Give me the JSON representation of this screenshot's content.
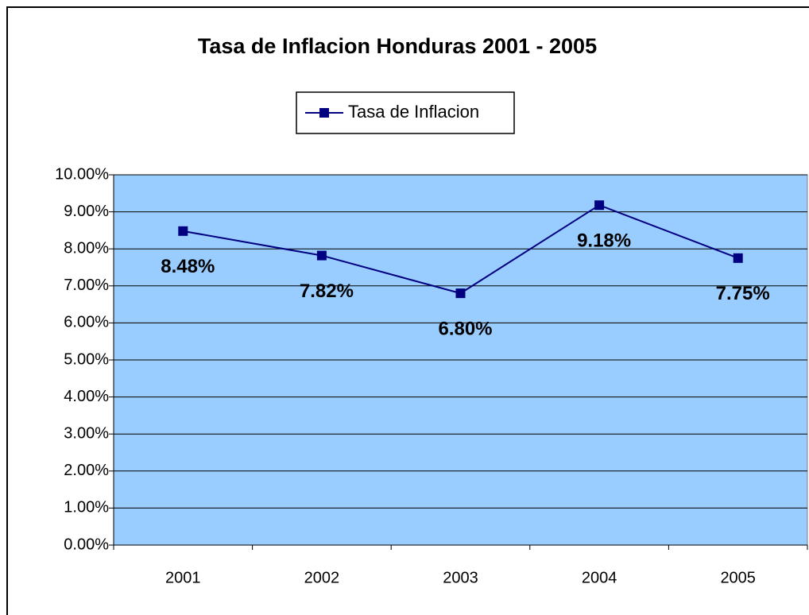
{
  "chart_data": {
    "type": "line",
    "title": "Tasa de Inflacion Honduras 2001 - 2005",
    "categories": [
      "2001",
      "2002",
      "2003",
      "2004",
      "2005"
    ],
    "series": [
      {
        "name": "Tasa de Inflacion",
        "color": "#000080",
        "values": [
          8.48,
          7.82,
          6.8,
          9.18,
          7.75
        ],
        "value_labels": [
          "8.48%",
          "7.82%",
          "6.80%",
          "9.18%",
          "7.75%"
        ]
      }
    ],
    "ylim": [
      0,
      10
    ],
    "yticks": [
      {
        "value": 0,
        "label": "0.00%"
      },
      {
        "value": 1,
        "label": "1.00%"
      },
      {
        "value": 2,
        "label": "2.00%"
      },
      {
        "value": 3,
        "label": "3.00%"
      },
      {
        "value": 4,
        "label": "4.00%"
      },
      {
        "value": 5,
        "label": "5.00%"
      },
      {
        "value": 6,
        "label": "6.00%"
      },
      {
        "value": 7,
        "label": "7.00%"
      },
      {
        "value": 8,
        "label": "8.00%"
      },
      {
        "value": 9,
        "label": "9.00%"
      },
      {
        "value": 10,
        "label": "10.00%"
      }
    ],
    "grid": true,
    "legend": "top",
    "plot_background": "#99ccff"
  }
}
